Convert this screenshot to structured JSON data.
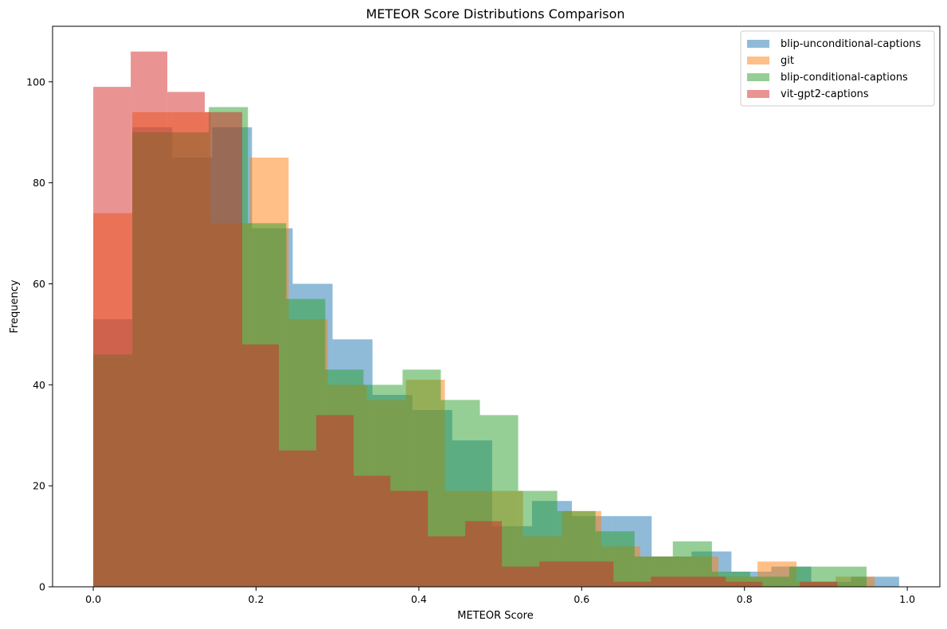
{
  "chart_data": {
    "type": "histogram",
    "title": "METEOR Score Distributions Comparison",
    "xlabel": "METEOR Score",
    "ylabel": "Frequency",
    "xlim": [
      -0.05,
      1.04
    ],
    "ylim": [
      0,
      111
    ],
    "xticks": [
      "0.0",
      "0.2",
      "0.4",
      "0.6",
      "0.8",
      "1.0"
    ],
    "yticks": [
      "0",
      "20",
      "40",
      "60",
      "80",
      "100"
    ],
    "alpha": 0.5,
    "legend_position": "top-right",
    "series": [
      {
        "name": "blip-unconditional-captions",
        "color": "#1f77b4",
        "bins": [
          [
            0.0,
            0.048,
            53
          ],
          [
            0.048,
            0.097,
            91
          ],
          [
            0.097,
            0.146,
            85
          ],
          [
            0.146,
            0.195,
            91
          ],
          [
            0.195,
            0.245,
            71
          ],
          [
            0.245,
            0.294,
            60
          ],
          [
            0.294,
            0.343,
            49
          ],
          [
            0.343,
            0.392,
            38
          ],
          [
            0.392,
            0.441,
            35
          ],
          [
            0.441,
            0.49,
            29
          ],
          [
            0.49,
            0.539,
            12
          ],
          [
            0.539,
            0.588,
            17
          ],
          [
            0.588,
            0.637,
            14
          ],
          [
            0.637,
            0.686,
            14
          ],
          [
            0.686,
            0.735,
            6
          ],
          [
            0.735,
            0.784,
            7
          ],
          [
            0.784,
            0.833,
            3
          ],
          [
            0.833,
            0.882,
            4
          ],
          [
            0.882,
            0.931,
            1
          ],
          [
            0.931,
            0.99,
            2
          ]
        ]
      },
      {
        "name": "git",
        "color": "#ff7f0e",
        "bins": [
          [
            0.0,
            0.048,
            74
          ],
          [
            0.048,
            0.096,
            94
          ],
          [
            0.096,
            0.144,
            94
          ],
          [
            0.144,
            0.192,
            72
          ],
          [
            0.192,
            0.24,
            85
          ],
          [
            0.24,
            0.288,
            53
          ],
          [
            0.288,
            0.336,
            40
          ],
          [
            0.336,
            0.384,
            37
          ],
          [
            0.384,
            0.432,
            41
          ],
          [
            0.432,
            0.48,
            19
          ],
          [
            0.48,
            0.528,
            19
          ],
          [
            0.528,
            0.576,
            10
          ],
          [
            0.576,
            0.624,
            15
          ],
          [
            0.624,
            0.672,
            8
          ],
          [
            0.672,
            0.72,
            6
          ],
          [
            0.72,
            0.768,
            6
          ],
          [
            0.768,
            0.816,
            2
          ],
          [
            0.816,
            0.864,
            5
          ],
          [
            0.864,
            0.912,
            1
          ],
          [
            0.912,
            0.96,
            2
          ]
        ]
      },
      {
        "name": "blip-conditional-captions",
        "color": "#2ca02c",
        "bins": [
          [
            0.0,
            0.048,
            46
          ],
          [
            0.048,
            0.095,
            90
          ],
          [
            0.095,
            0.142,
            90
          ],
          [
            0.142,
            0.19,
            95
          ],
          [
            0.19,
            0.237,
            72
          ],
          [
            0.237,
            0.285,
            57
          ],
          [
            0.285,
            0.332,
            43
          ],
          [
            0.332,
            0.38,
            40
          ],
          [
            0.38,
            0.427,
            43
          ],
          [
            0.427,
            0.475,
            37
          ],
          [
            0.475,
            0.522,
            34
          ],
          [
            0.522,
            0.57,
            19
          ],
          [
            0.57,
            0.617,
            15
          ],
          [
            0.617,
            0.665,
            11
          ],
          [
            0.665,
            0.712,
            6
          ],
          [
            0.712,
            0.76,
            9
          ],
          [
            0.76,
            0.807,
            3
          ],
          [
            0.807,
            0.855,
            2
          ],
          [
            0.855,
            0.902,
            4
          ],
          [
            0.902,
            0.95,
            4
          ]
        ]
      },
      {
        "name": "vit-gpt2-captions",
        "color": "#d62728",
        "bins": [
          [
            0.0,
            0.046,
            99
          ],
          [
            0.046,
            0.091,
            106
          ],
          [
            0.091,
            0.137,
            98
          ],
          [
            0.137,
            0.183,
            94
          ],
          [
            0.183,
            0.228,
            48
          ],
          [
            0.228,
            0.274,
            27
          ],
          [
            0.274,
            0.32,
            34
          ],
          [
            0.32,
            0.365,
            22
          ],
          [
            0.365,
            0.411,
            19
          ],
          [
            0.411,
            0.457,
            10
          ],
          [
            0.457,
            0.502,
            13
          ],
          [
            0.502,
            0.548,
            4
          ],
          [
            0.548,
            0.594,
            5
          ],
          [
            0.594,
            0.639,
            5
          ],
          [
            0.639,
            0.685,
            1
          ],
          [
            0.685,
            0.731,
            2
          ],
          [
            0.731,
            0.777,
            2
          ],
          [
            0.777,
            0.822,
            1
          ],
          [
            0.822,
            0.868,
            0
          ],
          [
            0.868,
            0.914,
            1
          ]
        ]
      }
    ]
  }
}
